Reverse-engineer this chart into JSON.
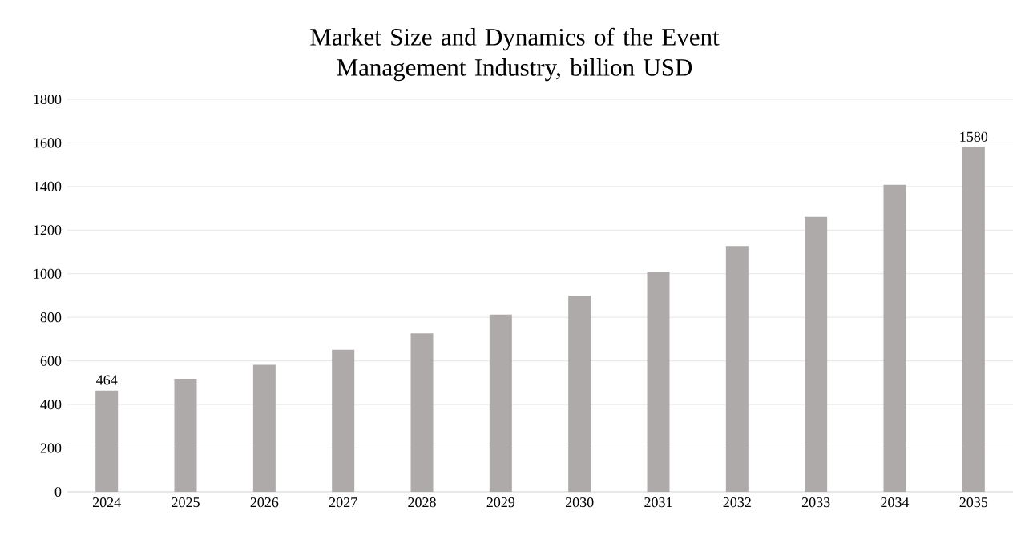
{
  "chart_data": {
    "type": "bar",
    "title": "Market Size and Dynamics of the Event Management Industry, billion USD",
    "categories": [
      "2024",
      "2025",
      "2026",
      "2027",
      "2028",
      "2029",
      "2030",
      "2031",
      "2032",
      "2033",
      "2034",
      "2035"
    ],
    "values": [
      464,
      518,
      582,
      651,
      726,
      813,
      899,
      1008,
      1127,
      1261,
      1408,
      1580
    ],
    "value_labels": [
      "464",
      null,
      null,
      null,
      null,
      null,
      null,
      null,
      null,
      null,
      null,
      "1580"
    ],
    "color": "#aeaaaa",
    "ylim": [
      0,
      1800
    ],
    "yticks": [
      0,
      200,
      400,
      600,
      800,
      1000,
      1200,
      1400,
      1600,
      1800
    ],
    "grid": "y"
  }
}
